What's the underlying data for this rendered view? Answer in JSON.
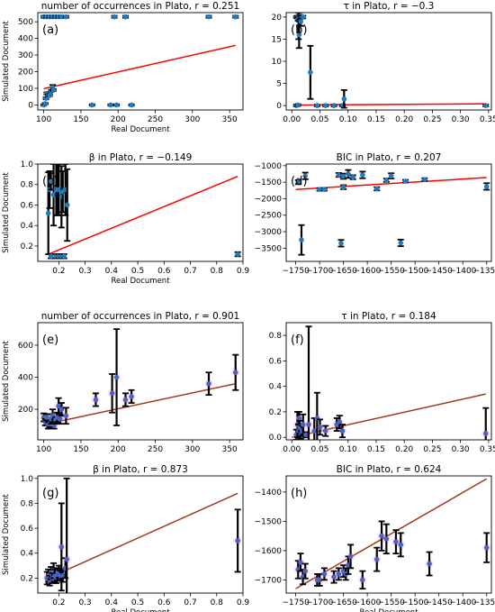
{
  "chart_data": [
    {
      "type": "scatter",
      "panel": "(a)",
      "title": "number of occurrences in Plato,  r = 0.251",
      "xlabel": "Real Document",
      "ylabel": "Simulated Document",
      "xlim": [
        92,
        368
      ],
      "ylim": [
        -30,
        555
      ],
      "xticks": [
        100,
        150,
        200,
        250,
        300,
        350
      ],
      "yticks": [
        0,
        100,
        200,
        300,
        400,
        500
      ],
      "points": [
        [
          100,
          530,
          6
        ],
        [
          104,
          530,
          6
        ],
        [
          108,
          530,
          6
        ],
        [
          112,
          530,
          6
        ],
        [
          116,
          530,
          6
        ],
        [
          120,
          530,
          6
        ],
        [
          124,
          530,
          6
        ],
        [
          130,
          530,
          6
        ],
        [
          195,
          530,
          6
        ],
        [
          210,
          530,
          6
        ],
        [
          322,
          530,
          6
        ],
        [
          358,
          530,
          6
        ],
        [
          100,
          0,
          4
        ],
        [
          102,
          8,
          4
        ],
        [
          103,
          40,
          6
        ],
        [
          104,
          70,
          6
        ],
        [
          106,
          55,
          6
        ],
        [
          108,
          60,
          6
        ],
        [
          110,
          85,
          6
        ],
        [
          112,
          105,
          15
        ],
        [
          113,
          90,
          6
        ],
        [
          165,
          0,
          4
        ],
        [
          190,
          0,
          4
        ],
        [
          198,
          0,
          4
        ],
        [
          218,
          0,
          4
        ]
      ],
      "fit": [
        [
          100,
          98
        ],
        [
          358,
          358
        ]
      ],
      "style": {
        "marker": "#2479b8",
        "err": "#000000",
        "fit": "#ff0000",
        "halo": "none"
      }
    },
    {
      "type": "scatter",
      "panel": "(b)",
      "title": "τ   in Plato,  r = −0.3",
      "xlabel": "",
      "ylabel": "",
      "xlim": [
        -0.01,
        0.355
      ],
      "ylim": [
        -1,
        21
      ],
      "xticks": [
        0.0,
        0.05,
        0.1,
        0.15,
        0.2,
        0.25,
        0.3,
        0.35
      ],
      "yticks": [
        0,
        5,
        10,
        15,
        20
      ],
      "points": [
        [
          0.008,
          20,
          0.2
        ],
        [
          0.01,
          20,
          0.3
        ],
        [
          0.011,
          19.6,
          0.4
        ],
        [
          0.012,
          18,
          3
        ],
        [
          0.013,
          16,
          3
        ],
        [
          0.014,
          20,
          0.5
        ],
        [
          0.016,
          19,
          1
        ],
        [
          0.017,
          20,
          0.3
        ],
        [
          0.018,
          20,
          0.3
        ],
        [
          0.02,
          20,
          0.3
        ],
        [
          0.008,
          0,
          0.2
        ],
        [
          0.011,
          0.1,
          0.2
        ],
        [
          0.033,
          7.5,
          6
        ],
        [
          0.045,
          0,
          0.2
        ],
        [
          0.06,
          0,
          0.2
        ],
        [
          0.075,
          0,
          0.2
        ],
        [
          0.09,
          0,
          0.2
        ],
        [
          0.093,
          1.5,
          2
        ],
        [
          0.345,
          0,
          0.2
        ]
      ],
      "fit": [
        [
          0.008,
          0.1
        ],
        [
          0.345,
          0.4
        ]
      ],
      "style": {
        "marker": "#2479b8",
        "err": "#000000",
        "fit": "#ff0000",
        "halo": "none"
      }
    },
    {
      "type": "scatter",
      "panel": "(c)",
      "title": "β   in Plato,  r = −0.149",
      "xlabel": "Real Document",
      "ylabel": "Simulated Document",
      "xlim": [
        0.12,
        0.9
      ],
      "ylim": [
        0.05,
        1.0
      ],
      "xticks": [
        0.2,
        0.3,
        0.4,
        0.5,
        0.6,
        0.7,
        0.8,
        0.9
      ],
      "yticks": [
        0.2,
        0.4,
        0.6,
        0.8,
        1.0
      ],
      "points": [
        [
          0.16,
          0.52,
          0.4
        ],
        [
          0.165,
          0.75,
          0.18
        ],
        [
          0.17,
          0.83,
          0.08
        ],
        [
          0.18,
          0.7,
          0.3
        ],
        [
          0.19,
          0.75,
          0.25
        ],
        [
          0.195,
          0.75,
          0.25
        ],
        [
          0.2,
          0.75,
          0.25
        ],
        [
          0.21,
          0.68,
          0.3
        ],
        [
          0.215,
          0.73,
          0.2
        ],
        [
          0.225,
          0.75,
          0.25
        ],
        [
          0.232,
          0.6,
          0.35
        ],
        [
          0.17,
          0.1,
          0.02
        ],
        [
          0.19,
          0.1,
          0.02
        ],
        [
          0.2,
          0.1,
          0.02
        ],
        [
          0.21,
          0.1,
          0.02
        ],
        [
          0.22,
          0.1,
          0.02
        ],
        [
          0.88,
          0.12,
          0.02
        ]
      ],
      "fit": [
        [
          0.16,
          0.12
        ],
        [
          0.88,
          0.88
        ]
      ],
      "style": {
        "marker": "#2479b8",
        "err": "#000000",
        "fit": "#ff0000",
        "halo": "none"
      }
    },
    {
      "type": "scatter",
      "panel": "(d)",
      "title": "BIC in Plato,  r = 0.207",
      "xlabel": "",
      "ylabel": "",
      "xlim": [
        -1770,
        -1340
      ],
      "ylim": [
        -3900,
        -950
      ],
      "xticks": [
        -1750,
        -1700,
        -1650,
        -1600,
        -1550,
        -1500,
        -1450,
        -1400,
        -1350
      ],
      "yticks": [
        -1000,
        -1500,
        -2000,
        -2500,
        -3000,
        -3500
      ],
      "points": [
        [
          -1745,
          -1500,
          60
        ],
        [
          -1738,
          -3250,
          450
        ],
        [
          -1730,
          -1310,
          100
        ],
        [
          -1700,
          -1720,
          40
        ],
        [
          -1690,
          -1720,
          40
        ],
        [
          -1660,
          -1280,
          60
        ],
        [
          -1655,
          -3350,
          100
        ],
        [
          -1650,
          -1320,
          80
        ],
        [
          -1650,
          -1650,
          60
        ],
        [
          -1640,
          -1250,
          120
        ],
        [
          -1630,
          -1350,
          60
        ],
        [
          -1610,
          -1280,
          100
        ],
        [
          -1580,
          -1700,
          50
        ],
        [
          -1560,
          -1440,
          50
        ],
        [
          -1550,
          -1310,
          80
        ],
        [
          -1530,
          -3340,
          100
        ],
        [
          -1520,
          -1470,
          40
        ],
        [
          -1480,
          -1420,
          40
        ],
        [
          -1350,
          -1630,
          100
        ]
      ],
      "fit": [
        [
          -1750,
          -1720
        ],
        [
          -1350,
          -1360
        ]
      ],
      "style": {
        "marker": "#2479b8",
        "err": "#000000",
        "fit": "#ff0000",
        "halo": "none"
      }
    },
    {
      "type": "scatter",
      "panel": "(e)",
      "title": "number of occurrences in Plato,  r = 0.901",
      "xlabel": "",
      "ylabel": "Simulated Document",
      "xlim": [
        92,
        368
      ],
      "ylim": [
        10,
        740
      ],
      "xticks": [
        100,
        150,
        200,
        250,
        300,
        350
      ],
      "yticks": [
        200,
        400,
        600
      ],
      "points": [
        [
          100,
          150,
          25
        ],
        [
          102,
          120,
          20
        ],
        [
          104,
          150,
          20
        ],
        [
          106,
          100,
          20
        ],
        [
          108,
          110,
          20
        ],
        [
          110,
          140,
          30
        ],
        [
          112,
          160,
          40
        ],
        [
          114,
          100,
          20
        ],
        [
          116,
          130,
          20
        ],
        [
          118,
          150,
          30
        ],
        [
          120,
          220,
          50
        ],
        [
          122,
          140,
          30
        ],
        [
          124,
          200,
          40
        ],
        [
          130,
          160,
          50
        ],
        [
          170,
          260,
          40
        ],
        [
          192,
          300,
          120
        ],
        [
          198,
          400,
          300
        ],
        [
          210,
          260,
          40
        ],
        [
          218,
          280,
          40
        ],
        [
          322,
          360,
          70
        ],
        [
          358,
          430,
          110
        ]
      ],
      "fit": [
        [
          100,
          105
        ],
        [
          358,
          360
        ]
      ],
      "style": {
        "marker": "#4a64c0",
        "err": "#000000",
        "fit": "#a0391c",
        "halo": "#ff99dd"
      }
    },
    {
      "type": "scatter",
      "panel": "(f)",
      "title": "τ   in Plato,  r = 0.184",
      "xlabel": "",
      "ylabel": "",
      "xlim": [
        -0.01,
        0.355
      ],
      "ylim": [
        -0.02,
        0.9
      ],
      "xticks": [
        0.0,
        0.05,
        0.1,
        0.15,
        0.2,
        0.25,
        0.3,
        0.35
      ],
      "yticks": [
        0.0,
        0.2,
        0.4,
        0.6,
        0.8
      ],
      "points": [
        [
          0.008,
          0.02,
          0.04
        ],
        [
          0.01,
          0.1,
          0.1
        ],
        [
          0.012,
          0.05,
          0.05
        ],
        [
          0.013,
          0.15,
          0.05
        ],
        [
          0.014,
          0.08,
          0.05
        ],
        [
          0.016,
          0.02,
          0.03
        ],
        [
          0.018,
          0.05,
          0.04
        ],
        [
          0.02,
          0.1,
          0.08
        ],
        [
          0.025,
          0.02,
          0.02
        ],
        [
          0.03,
          0.1,
          0.77
        ],
        [
          0.04,
          0.05,
          0.1
        ],
        [
          0.045,
          0.15,
          0.2
        ],
        [
          0.05,
          0.08,
          0.06
        ],
        [
          0.06,
          0.05,
          0.04
        ],
        [
          0.08,
          0.1,
          0.05
        ],
        [
          0.085,
          0.12,
          0.05
        ],
        [
          0.09,
          0.05,
          0.05
        ],
        [
          0.345,
          0.03,
          0.2
        ]
      ],
      "fit": [
        [
          0.0,
          0.0
        ],
        [
          0.345,
          0.34
        ]
      ],
      "style": {
        "marker": "#4a64c0",
        "err": "#000000",
        "fit": "#a0391c",
        "halo": "#ff99dd"
      }
    },
    {
      "type": "scatter",
      "panel": "(g)",
      "title": "β   in Plato,  r = 0.873",
      "xlabel": "Real Document",
      "ylabel": "Simulated Document",
      "xlim": [
        0.12,
        0.9
      ],
      "ylim": [
        0.08,
        1.02
      ],
      "xticks": [
        0.2,
        0.3,
        0.4,
        0.5,
        0.6,
        0.7,
        0.8,
        0.9
      ],
      "yticks": [
        0.2,
        0.4,
        0.6,
        0.8,
        1.0
      ],
      "points": [
        [
          0.155,
          0.2,
          0.05
        ],
        [
          0.16,
          0.22,
          0.05
        ],
        [
          0.165,
          0.18,
          0.04
        ],
        [
          0.17,
          0.24,
          0.05
        ],
        [
          0.175,
          0.2,
          0.04
        ],
        [
          0.18,
          0.26,
          0.06
        ],
        [
          0.185,
          0.22,
          0.05
        ],
        [
          0.19,
          0.2,
          0.04
        ],
        [
          0.195,
          0.23,
          0.05
        ],
        [
          0.2,
          0.25,
          0.05
        ],
        [
          0.205,
          0.22,
          0.04
        ],
        [
          0.21,
          0.45,
          0.35
        ],
        [
          0.215,
          0.22,
          0.05
        ],
        [
          0.225,
          0.28,
          0.08
        ],
        [
          0.23,
          0.35,
          0.65
        ],
        [
          0.88,
          0.5,
          0.25
        ]
      ],
      "fit": [
        [
          0.16,
          0.2
        ],
        [
          0.88,
          0.88
        ]
      ],
      "style": {
        "marker": "#4a64c0",
        "err": "#000000",
        "fit": "#a0391c",
        "halo": "#ff99dd"
      }
    },
    {
      "type": "scatter",
      "panel": "(h)",
      "title": "BIC in Plato,  r = 0.624",
      "xlabel": "Real Document",
      "ylabel": "",
      "xlim": [
        -1770,
        -1340
      ],
      "ylim": [
        -1745,
        -1345
      ],
      "xticks": [
        -1750,
        -1700,
        -1650,
        -1600,
        -1550,
        -1500,
        -1450,
        -1400,
        -1350
      ],
      "yticks": [
        -1400,
        -1500,
        -1600,
        -1700
      ],
      "points": [
        [
          -1745,
          -1665,
          30
        ],
        [
          -1740,
          -1640,
          30
        ],
        [
          -1735,
          -1690,
          25
        ],
        [
          -1730,
          -1670,
          25
        ],
        [
          -1705,
          -1700,
          20
        ],
        [
          -1700,
          -1700,
          20
        ],
        [
          -1690,
          -1680,
          20
        ],
        [
          -1670,
          -1690,
          20
        ],
        [
          -1660,
          -1680,
          20
        ],
        [
          -1650,
          -1670,
          20
        ],
        [
          -1645,
          -1680,
          20
        ],
        [
          -1640,
          -1650,
          30
        ],
        [
          -1635,
          -1620,
          40
        ],
        [
          -1610,
          -1700,
          30
        ],
        [
          -1580,
          -1630,
          40
        ],
        [
          -1570,
          -1550,
          50
        ],
        [
          -1560,
          -1560,
          50
        ],
        [
          -1540,
          -1570,
          40
        ],
        [
          -1530,
          -1580,
          40
        ],
        [
          -1470,
          -1645,
          40
        ],
        [
          -1350,
          -1590,
          50
        ]
      ],
      "fit": [
        [
          -1750,
          -1730
        ],
        [
          -1350,
          -1355
        ]
      ],
      "style": {
        "marker": "#4a64c0",
        "err": "#000000",
        "fit": "#a0391c",
        "halo": "#ff99dd"
      }
    }
  ]
}
